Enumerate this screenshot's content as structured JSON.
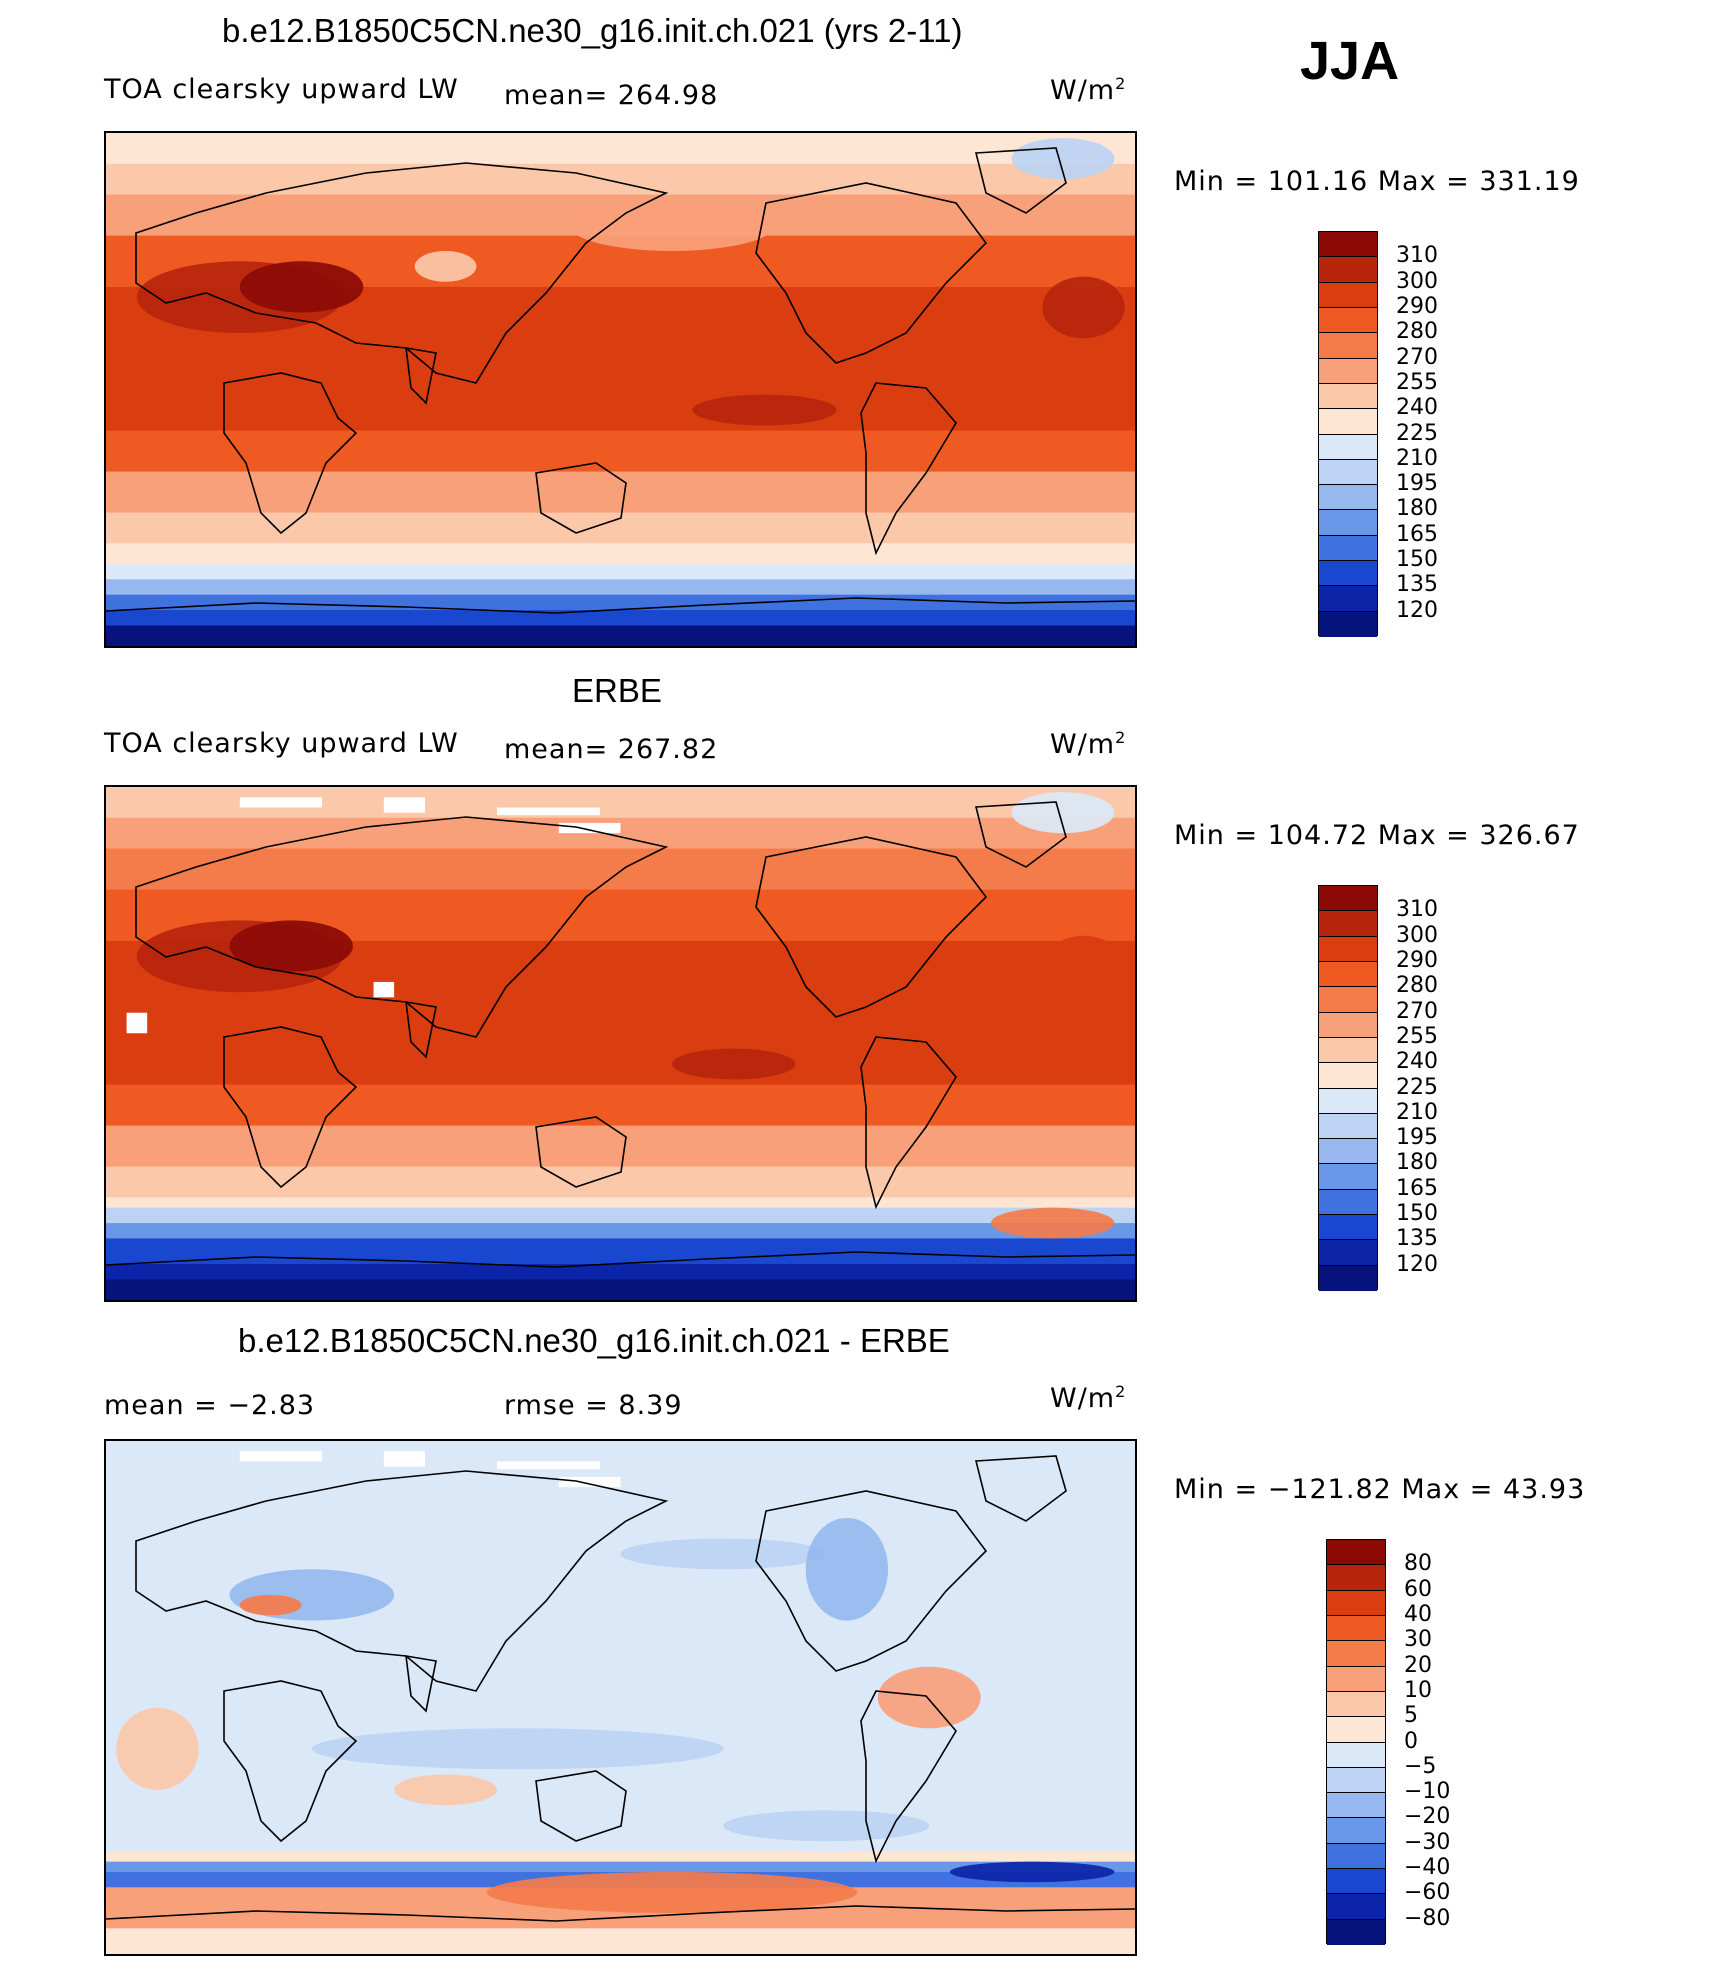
{
  "season": "JJA",
  "units_base": "W/m",
  "units_exp": "2",
  "panels": [
    {
      "title": "b.e12.B1850C5CN.ne30_g16.init.ch.021 (yrs 2-11)",
      "left_label": "TOA clearsky upward LW",
      "stat_text": "mean=  264.98",
      "minmax_text": "Min  =  101.16  Max  =  331.19"
    },
    {
      "title": "ERBE",
      "left_label": "TOA clearsky upward LW",
      "stat_text": "mean=  267.82",
      "minmax_text": "Min  =  104.72  Max  =  326.67"
    },
    {
      "title": "b.e12.B1850C5CN.ne30_g16.init.ch.021 - ERBE",
      "left_label": "mean  =    −2.83",
      "stat_text": "rmse  =     8.39",
      "minmax_text": "Min  =  −121.82  Max  =    43.93"
    }
  ],
  "chart_data": [
    {
      "type": "heatmap",
      "title": "b.e12.B1850C5CN.ne30_g16.init.ch.021 (yrs 2-11)",
      "variable": "TOA clearsky upward LW",
      "units": "W/m^2",
      "mean": 264.98,
      "min": 101.16,
      "max": 331.19,
      "colorbar_levels": [
        "310",
        "300",
        "290",
        "280",
        "270",
        "255",
        "240",
        "225",
        "210",
        "195",
        "180",
        "165",
        "150",
        "135",
        "120"
      ],
      "colorbar_colors": [
        "#8b0a06",
        "#b8250d",
        "#d93d10",
        "#ef5a22",
        "#f47b4a",
        "#f8a07a",
        "#fbc8aa",
        "#fde6d4",
        "#dbe8f7",
        "#bcd3f3",
        "#96b8ee",
        "#6a98e8",
        "#3f72df",
        "#1a47cf",
        "#0b24a8",
        "#06137c"
      ]
    },
    {
      "type": "heatmap",
      "title": "ERBE",
      "variable": "TOA clearsky upward LW",
      "units": "W/m^2",
      "mean": 267.82,
      "min": 104.72,
      "max": 326.67,
      "colorbar_levels": [
        "310",
        "300",
        "290",
        "280",
        "270",
        "255",
        "240",
        "225",
        "210",
        "195",
        "180",
        "165",
        "150",
        "135",
        "120"
      ],
      "colorbar_colors": [
        "#8b0a06",
        "#b8250d",
        "#d93d10",
        "#ef5a22",
        "#f47b4a",
        "#f8a07a",
        "#fbc8aa",
        "#fde6d4",
        "#dbe8f7",
        "#bcd3f3",
        "#96b8ee",
        "#6a98e8",
        "#3f72df",
        "#1a47cf",
        "#0b24a8",
        "#06137c"
      ]
    },
    {
      "type": "heatmap",
      "title": "b.e12.B1850C5CN.ne30_g16.init.ch.021 - ERBE",
      "units": "W/m^2",
      "mean": -2.83,
      "rmse": 8.39,
      "min": -121.82,
      "max": 43.93,
      "colorbar_levels": [
        "80",
        "60",
        "40",
        "30",
        "20",
        "10",
        "5",
        "0",
        "−5",
        "−10",
        "−20",
        "−30",
        "−40",
        "−60",
        "−80"
      ],
      "colorbar_colors": [
        "#8b0a06",
        "#b8250d",
        "#d93d10",
        "#ef5a22",
        "#f47b4a",
        "#f8a07a",
        "#fbc8aa",
        "#fde6d4",
        "#dbe8f7",
        "#bcd3f3",
        "#96b8ee",
        "#6a98e8",
        "#3f72df",
        "#1a47cf",
        "#0b24a8",
        "#06137c"
      ]
    }
  ]
}
